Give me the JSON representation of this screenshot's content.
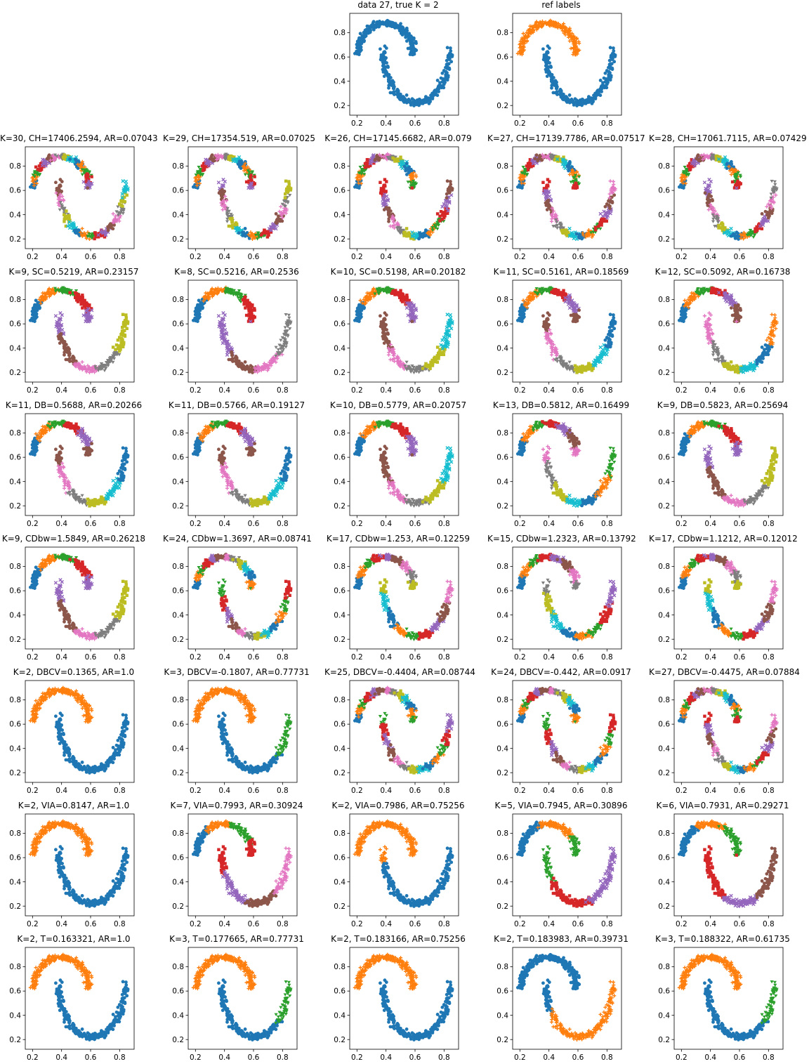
{
  "palette": [
    "#1f77b4",
    "#ff7f0e",
    "#2ca02c",
    "#d62728",
    "#9467bd",
    "#8c564b",
    "#e377c2",
    "#7f7f7f",
    "#bcbd22",
    "#17becf"
  ],
  "axes": {
    "xlim": [
      0.15,
      0.9
    ],
    "ylim": [
      0.12,
      0.96
    ],
    "xticks": [
      0.2,
      0.4,
      0.6,
      0.8
    ],
    "yticks": [
      0.2,
      0.4,
      0.6,
      0.8
    ],
    "xtick_labels": [
      "0.2",
      "0.4",
      "0.6",
      "0.8"
    ],
    "ytick_labels": [
      "0.2",
      "0.4",
      "0.6",
      "0.8"
    ]
  },
  "chart_data": [
    {
      "type": "scatter",
      "row": 0,
      "col": 2,
      "title": "data 27, true K = 2",
      "K": 1
    },
    {
      "type": "scatter",
      "row": 0,
      "col": 3,
      "title": "ref labels",
      "K": 2
    },
    {
      "type": "scatter",
      "row": 1,
      "col": 0,
      "title": "K=30, CH=17406.2594, AR=0.07043",
      "K": 30
    },
    {
      "type": "scatter",
      "row": 1,
      "col": 1,
      "title": "K=29, CH=17354.519, AR=0.07025",
      "K": 29
    },
    {
      "type": "scatter",
      "row": 1,
      "col": 2,
      "title": "K=26, CH=17145.6682, AR=0.079",
      "K": 26
    },
    {
      "type": "scatter",
      "row": 1,
      "col": 3,
      "title": "K=27, CH=17139.7786, AR=0.07517",
      "K": 27
    },
    {
      "type": "scatter",
      "row": 1,
      "col": 4,
      "title": "K=28, CH=17061.7115, AR=0.07429",
      "K": 28
    },
    {
      "type": "scatter",
      "row": 2,
      "col": 0,
      "title": "K=9, SC=0.5219, AR=0.23157",
      "K": 9
    },
    {
      "type": "scatter",
      "row": 2,
      "col": 1,
      "title": "K=8, SC=0.5216, AR=0.2536",
      "K": 8
    },
    {
      "type": "scatter",
      "row": 2,
      "col": 2,
      "title": "K=10, SC=0.5198, AR=0.20182",
      "K": 10
    },
    {
      "type": "scatter",
      "row": 2,
      "col": 3,
      "title": "K=11, SC=0.5161, AR=0.18569",
      "K": 11
    },
    {
      "type": "scatter",
      "row": 2,
      "col": 4,
      "title": "K=12, SC=0.5092, AR=0.16738",
      "K": 12
    },
    {
      "type": "scatter",
      "row": 3,
      "col": 0,
      "title": "K=11, DB=0.5688, AR=0.20266",
      "K": 11
    },
    {
      "type": "scatter",
      "row": 3,
      "col": 1,
      "title": "K=11, DB=0.5766, AR=0.19127",
      "K": 11
    },
    {
      "type": "scatter",
      "row": 3,
      "col": 2,
      "title": "K=10, DB=0.5779, AR=0.20757",
      "K": 10
    },
    {
      "type": "scatter",
      "row": 3,
      "col": 3,
      "title": "K=13, DB=0.5812, AR=0.16499",
      "K": 13
    },
    {
      "type": "scatter",
      "row": 3,
      "col": 4,
      "title": "K=9, DB=0.5823, AR=0.25694",
      "K": 9
    },
    {
      "type": "scatter",
      "row": 4,
      "col": 0,
      "title": "K=9, CDbw=1.5849, AR=0.26218",
      "K": 9
    },
    {
      "type": "scatter",
      "row": 4,
      "col": 1,
      "title": "K=24, CDbw=1.3697, AR=0.08741",
      "K": 24
    },
    {
      "type": "scatter",
      "row": 4,
      "col": 2,
      "title": "K=17, CDbw=1.253, AR=0.12259",
      "K": 17
    },
    {
      "type": "scatter",
      "row": 4,
      "col": 3,
      "title": "K=15, CDbw=1.2323, AR=0.13792",
      "K": 15
    },
    {
      "type": "scatter",
      "row": 4,
      "col": 4,
      "title": "K=17, CDbw=1.1212, AR=0.12012",
      "K": 17
    },
    {
      "type": "scatter",
      "row": 5,
      "col": 0,
      "title": "K=2, DBCV=0.1365, AR=1.0",
      "K": 2
    },
    {
      "type": "scatter",
      "row": 5,
      "col": 1,
      "title": "K=3, DBCV=-0.1807, AR=0.77731",
      "K": 3
    },
    {
      "type": "scatter",
      "row": 5,
      "col": 2,
      "title": "K=25, DBCV=-0.4404, AR=0.08744",
      "K": 25
    },
    {
      "type": "scatter",
      "row": 5,
      "col": 3,
      "title": "K=24, DBCV=-0.442, AR=0.0917",
      "K": 24
    },
    {
      "type": "scatter",
      "row": 5,
      "col": 4,
      "title": "K=27, DBCV=-0.4475, AR=0.07884",
      "K": 27
    },
    {
      "type": "scatter",
      "row": 6,
      "col": 0,
      "title": "K=2, VIA=0.8147, AR=1.0",
      "K": 2
    },
    {
      "type": "scatter",
      "row": 6,
      "col": 1,
      "title": "K=7, VIA=0.7993, AR=0.30924",
      "K": 7
    },
    {
      "type": "scatter",
      "row": 6,
      "col": 2,
      "title": "K=2, VIA=0.7986, AR=0.75256",
      "K": 2
    },
    {
      "type": "scatter",
      "row": 6,
      "col": 3,
      "title": "K=5, VIA=0.7945, AR=0.30896",
      "K": 5
    },
    {
      "type": "scatter",
      "row": 6,
      "col": 4,
      "title": "K=6, VIA=0.7931, AR=0.29271",
      "K": 6
    },
    {
      "type": "scatter",
      "row": 7,
      "col": 0,
      "title": "K=2, T=0.163321, AR=1.0",
      "K": 2
    },
    {
      "type": "scatter",
      "row": 7,
      "col": 1,
      "title": "K=3, T=0.177665, AR=0.77731",
      "K": 3
    },
    {
      "type": "scatter",
      "row": 7,
      "col": 2,
      "title": "K=2, T=0.183166, AR=0.75256",
      "K": 2
    },
    {
      "type": "scatter",
      "row": 7,
      "col": 3,
      "title": "K=2, T=0.183983, AR=0.39731",
      "K": 2
    },
    {
      "type": "scatter",
      "row": 7,
      "col": 4,
      "title": "K=3, T=0.188322, AR=0.61735",
      "K": 3
    }
  ]
}
